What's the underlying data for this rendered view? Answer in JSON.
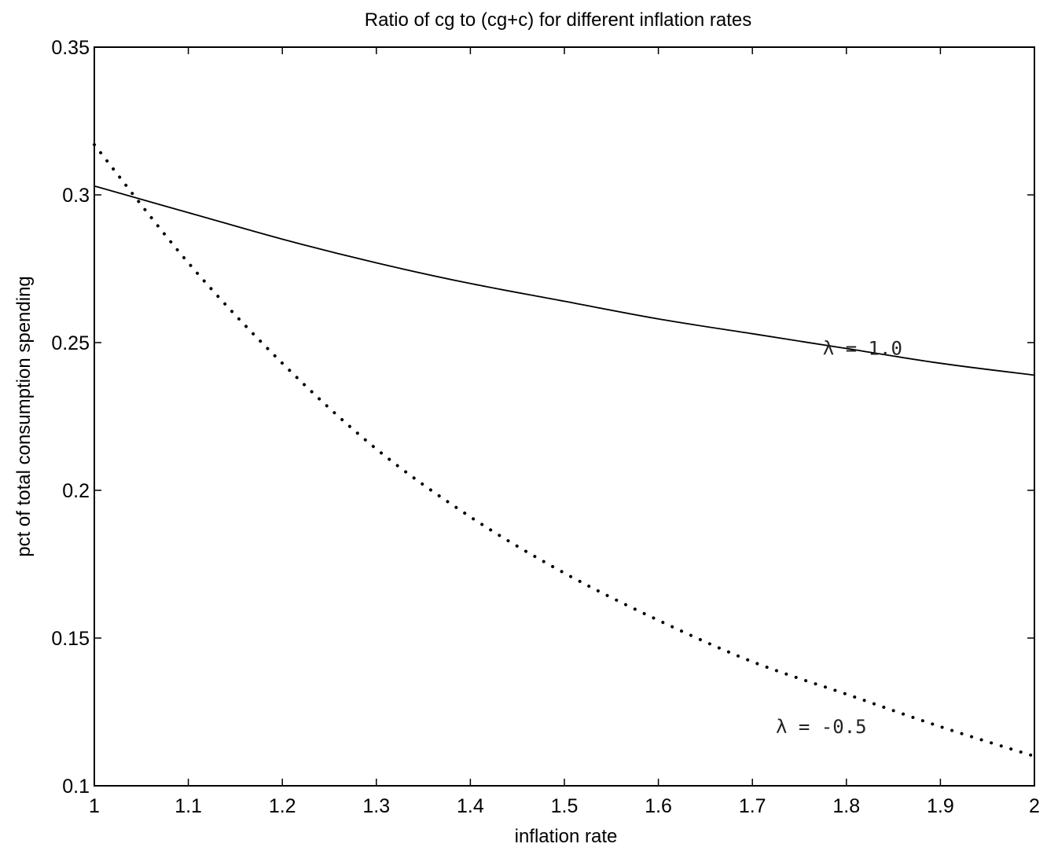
{
  "chart_data": {
    "type": "line",
    "title": "Ratio of cg to (cg+c) for different inflation rates",
    "xlabel": "inflation rate",
    "ylabel": "pct of total consumption spending",
    "xlim": [
      1,
      2
    ],
    "ylim": [
      0.1,
      0.35
    ],
    "xticks": [
      1,
      1.1,
      1.2,
      1.3,
      1.4,
      1.5,
      1.6,
      1.7,
      1.8,
      1.9,
      2
    ],
    "xtick_labels": [
      "1",
      "1.1",
      "1.2",
      "1.3",
      "1.4",
      "1.5",
      "1.6",
      "1.7",
      "1.8",
      "1.9",
      "2"
    ],
    "yticks": [
      0.1,
      0.15,
      0.2,
      0.25,
      0.3,
      0.35
    ],
    "ytick_labels": [
      "0.1",
      "0.15",
      "0.2",
      "0.25",
      "0.3",
      "0.35"
    ],
    "grid": false,
    "legend": "none",
    "series": [
      {
        "name": "λ = 1.0",
        "style": "solid",
        "color": "#000000",
        "x": [
          1.0,
          1.1,
          1.2,
          1.3,
          1.4,
          1.5,
          1.6,
          1.7,
          1.8,
          1.9,
          2.0
        ],
        "y": [
          0.303,
          0.294,
          0.285,
          0.277,
          0.27,
          0.264,
          0.258,
          0.253,
          0.248,
          0.243,
          0.239
        ]
      },
      {
        "name": "λ = -0.5",
        "style": "dotted",
        "color": "#000000",
        "x": [
          1.0,
          1.1,
          1.2,
          1.3,
          1.4,
          1.5,
          1.6,
          1.7,
          1.8,
          1.9,
          2.0
        ],
        "y": [
          0.317,
          0.277,
          0.243,
          0.214,
          0.191,
          0.172,
          0.156,
          0.142,
          0.131,
          0.12,
          0.11
        ]
      }
    ],
    "annotations": [
      {
        "text": "λ = 1.0",
        "x": 1.8,
        "y": 0.248
      },
      {
        "text": "λ = -0.5",
        "x": 1.75,
        "y": 0.12
      }
    ]
  }
}
